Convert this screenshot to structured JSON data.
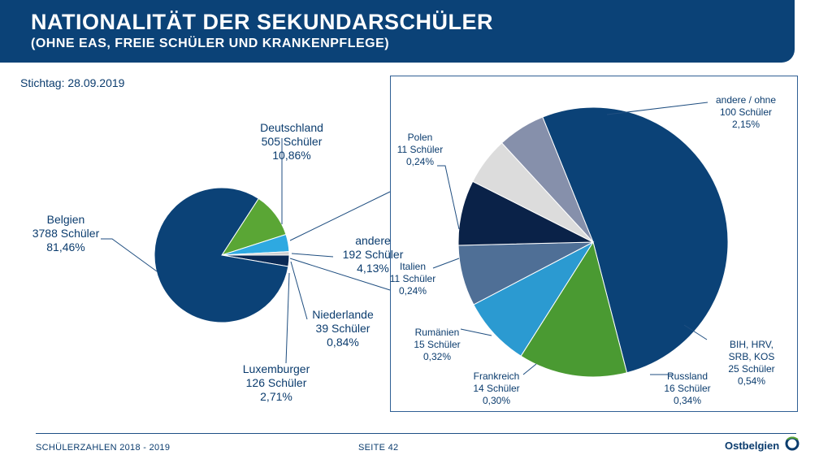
{
  "header": {
    "title": "NATIONALITÄT DER SEKUNDARSCHÜLER",
    "subtitle": "(OHNE EAS, FREIE SCHÜLER UND KRANKENPFLEGE)"
  },
  "stichtag": "Stichtag: 28.09.2019",
  "footer": {
    "left": "SCHÜLERZAHLEN 2018 - 2019",
    "page": "SEITE 42",
    "logo": "Ostbelgien"
  },
  "colors": {
    "header": "#0b4277",
    "belgien": "#0b4277",
    "deutschland": "#5aa635",
    "andere": "#2a9fd6",
    "niederlande": "#c9c9c9",
    "luxemburger": "#0a2a55",
    "text": "#0b3c6e"
  },
  "chart_data": [
    {
      "type": "pie",
      "name": "overview",
      "slices": [
        {
          "label": "Deutschland",
          "count": "505 Schüler",
          "percent": "10,86%",
          "value": 505,
          "color": "#5aa635"
        },
        {
          "label": "andere",
          "count": "192 Schüler",
          "percent": "4,13%",
          "value": 192,
          "color": "#2ea9e1"
        },
        {
          "label": "Niederlande",
          "count": "39 Schüler",
          "percent": "0,84%",
          "value": 39,
          "color": "#d0d0d0"
        },
        {
          "label": "Luxemburger",
          "count": "126 Schüler",
          "percent": "2,71%",
          "value": 126,
          "color": "#0a2a55"
        },
        {
          "label": "Belgien",
          "count": "3788 Schüler",
          "percent": "81,46%",
          "value": 3788,
          "color": "#0b4277"
        }
      ]
    },
    {
      "type": "pie",
      "name": "andere-breakdown",
      "slices": [
        {
          "label": "andere / ohne",
          "count": "100 Schüler",
          "percent": "2,15%",
          "value": 100,
          "color": "#0b4277"
        },
        {
          "label": "BIH, HRV, SRB, KOS",
          "count": "25 Schüler",
          "percent": "0,54%",
          "value": 25,
          "color": "#4a9a32"
        },
        {
          "label": "Russland",
          "count": "16 Schüler",
          "percent": "0,34%",
          "value": 16,
          "color": "#2b9ad1"
        },
        {
          "label": "Frankreich",
          "count": "14 Schüler",
          "percent": "0,30%",
          "value": 14,
          "color": "#4f6f96"
        },
        {
          "label": "Rumänien",
          "count": "15 Schüler",
          "percent": "0,32%",
          "value": 15,
          "color": "#0a2248"
        },
        {
          "label": "Italien",
          "count": "11 Schüler",
          "percent": "0,24%",
          "value": 11,
          "color": "#dcdcdc"
        },
        {
          "label": "Polen",
          "count": "11 Schüler",
          "percent": "0,24%",
          "value": 11,
          "color": "#8690ab"
        }
      ]
    }
  ]
}
